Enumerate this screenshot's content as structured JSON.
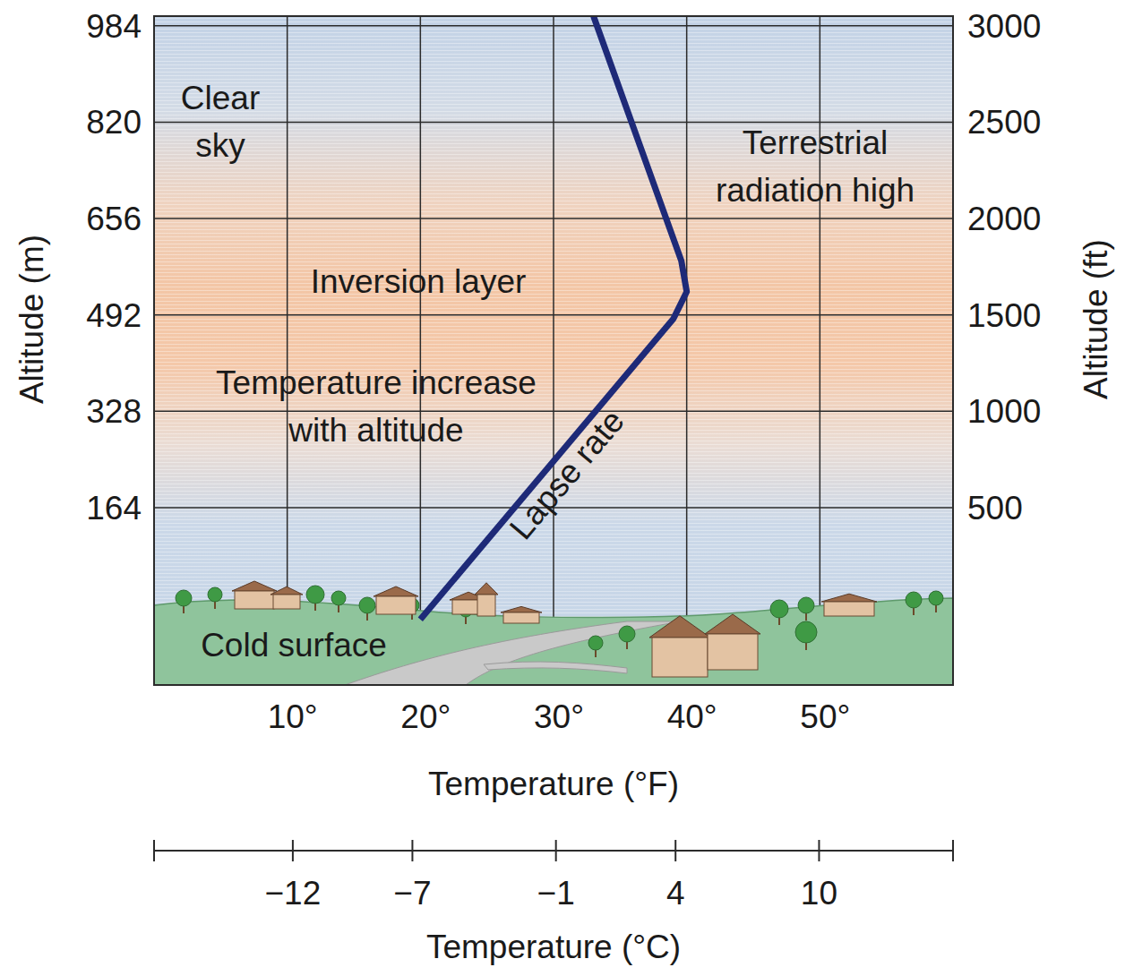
{
  "chart_data": {
    "type": "line",
    "x_label": "Temperature (°F)",
    "x2_label": "Temperature (°C)",
    "y_label": "Altitude (m)",
    "y2_label": "Altitude (ft)",
    "xlim": [
      0,
      60
    ],
    "xticks": [
      {
        "value": 10,
        "label": "10°"
      },
      {
        "value": 20,
        "label": "20°"
      },
      {
        "value": 30,
        "label": "30°"
      },
      {
        "value": 40,
        "label": "40°"
      },
      {
        "value": 50,
        "label": "50°"
      }
    ],
    "x2lim": [
      -17.8,
      15.6
    ],
    "x2ticks": [
      {
        "value": -12,
        "label": "−12"
      },
      {
        "value": -7,
        "label": "−7"
      },
      {
        "value": -1,
        "label": "−1"
      },
      {
        "value": 4,
        "label": "4"
      },
      {
        "value": 10,
        "label": "10"
      }
    ],
    "ylim": [
      -137.76,
      1000.4
    ],
    "yticks": [
      164,
      328,
      492,
      656,
      820,
      984
    ],
    "y2lim": [
      -420,
      3050
    ],
    "y2ticks": [
      500,
      1000,
      1500,
      2000,
      2500,
      3000
    ],
    "grid": true,
    "series": [
      {
        "name": "Lapse rate",
        "color": "#1e2a78",
        "axis": "y2",
        "x": [
          20,
          39,
          40,
          39.6,
          33
        ],
        "values": [
          -80,
          1480,
          1620,
          1780,
          3050
        ]
      }
    ],
    "annotations": [
      [
        "Clear",
        "sky"
      ],
      [
        "Terrestrial",
        "radiation high"
      ],
      [
        "Inversion layer"
      ],
      [
        "Temperature increase",
        "with altitude"
      ],
      [
        "Cold surface"
      ]
    ]
  }
}
